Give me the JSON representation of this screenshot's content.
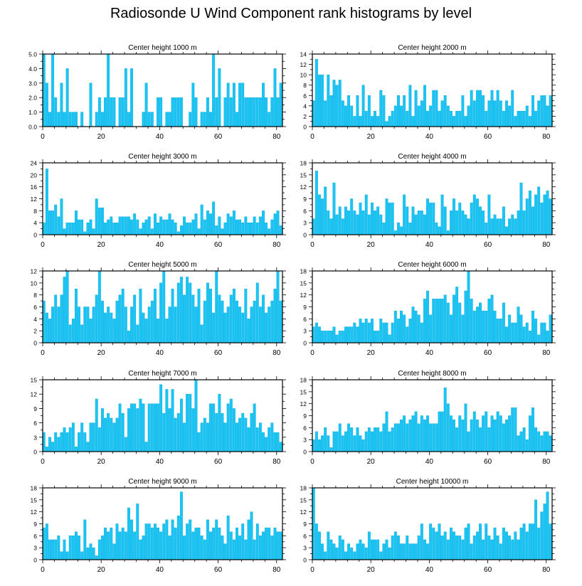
{
  "page_title": "Radiosonde U Wind Component rank histograms by level",
  "colors": {
    "bar": "#19c5f5",
    "bar_edge": "#0aa8d8",
    "axis": "#000000"
  },
  "chart_data": [
    {
      "type": "bar",
      "title": "Center height 1000 m",
      "xlabel": "",
      "ylabel": "",
      "xlim": [
        0,
        82
      ],
      "xticks": [
        0,
        20,
        40,
        60,
        80
      ],
      "ylim": [
        0,
        5
      ],
      "yticks": [
        0,
        1,
        2,
        3,
        4,
        5
      ],
      "yticklabels": [
        "0.0",
        "1.0",
        "2.0",
        "3.0",
        "4.0",
        "5.0"
      ],
      "x_start": 0,
      "values": [
        5,
        3,
        1,
        5,
        2,
        1,
        3,
        1,
        4,
        1,
        1,
        1,
        0,
        1,
        0,
        0,
        3,
        0,
        1,
        2,
        1,
        2,
        5,
        2,
        2,
        0,
        2,
        2,
        4,
        1,
        4,
        0,
        0,
        0,
        1,
        3,
        1,
        1,
        0,
        2,
        2,
        0,
        1,
        1,
        2,
        2,
        2,
        2,
        0,
        0,
        1,
        3,
        2,
        0,
        1,
        1,
        2,
        1,
        5,
        2,
        4,
        0,
        2,
        3,
        2,
        3,
        1,
        3,
        3,
        2,
        2,
        2,
        2,
        2,
        2,
        3,
        2,
        1,
        2,
        4,
        2,
        3
      ]
    },
    {
      "type": "bar",
      "title": "Center height 2000 m",
      "xlabel": "",
      "ylabel": "",
      "xlim": [
        0,
        82
      ],
      "xticks": [
        0,
        20,
        40,
        60,
        80
      ],
      "ylim": [
        0,
        14
      ],
      "yticks": [
        0,
        2,
        4,
        6,
        8,
        10,
        12,
        14
      ],
      "yticklabels": [
        "0",
        "2",
        "4",
        "6",
        "8",
        "10",
        "12",
        "14"
      ],
      "x_start": 0,
      "values": [
        5,
        13,
        10,
        10,
        5,
        10,
        6,
        9,
        8,
        9,
        5,
        4,
        6,
        4,
        2,
        6,
        2,
        8,
        3,
        6,
        2,
        3,
        2,
        7,
        6,
        1,
        2,
        3,
        4,
        6,
        4,
        6,
        3,
        8,
        2,
        7,
        4,
        5,
        8,
        3,
        4,
        7,
        7,
        3,
        5,
        6,
        4,
        3,
        2,
        3,
        3,
        6,
        2,
        4,
        7,
        5,
        7,
        7,
        6,
        3,
        5,
        7,
        5,
        7,
        5,
        3,
        5,
        4,
        7,
        2,
        3,
        3,
        3,
        4,
        2,
        6,
        3,
        5,
        6,
        6,
        4,
        6
      ]
    },
    {
      "type": "bar",
      "title": "Center height 3000 m",
      "xlabel": "",
      "ylabel": "",
      "xlim": [
        0,
        82
      ],
      "xticks": [
        0,
        20,
        40,
        60,
        80
      ],
      "ylim": [
        0,
        24
      ],
      "yticks": [
        0,
        4,
        8,
        12,
        16,
        20,
        24
      ],
      "yticklabels": [
        "0",
        "4",
        "8",
        "12",
        "16",
        "20",
        "24"
      ],
      "x_start": 0,
      "values": [
        4,
        22,
        8,
        8,
        10,
        6,
        12,
        2,
        4,
        4,
        4,
        8,
        5,
        5,
        1,
        4,
        5,
        2,
        12,
        9,
        9,
        4,
        5,
        6,
        4,
        4,
        6,
        6,
        6,
        6,
        5,
        7,
        5,
        2,
        4,
        5,
        6,
        2,
        7,
        4,
        6,
        5,
        5,
        7,
        5,
        4,
        1,
        3,
        6,
        4,
        4,
        5,
        7,
        2,
        10,
        5,
        8,
        7,
        11,
        3,
        6,
        2,
        4,
        7,
        6,
        8,
        5,
        5,
        4,
        6,
        4,
        4,
        6,
        4,
        6,
        8,
        4,
        2,
        5,
        7,
        8,
        3
      ]
    },
    {
      "type": "bar",
      "title": "Center height 4000 m",
      "xlabel": "",
      "ylabel": "",
      "xlim": [
        0,
        82
      ],
      "xticks": [
        0,
        20,
        40,
        60,
        80
      ],
      "ylim": [
        0,
        18
      ],
      "yticks": [
        0,
        3,
        6,
        9,
        12,
        15,
        18
      ],
      "yticklabels": [
        "0",
        "3",
        "6",
        "9",
        "12",
        "15",
        "18"
      ],
      "x_start": 0,
      "values": [
        4,
        16,
        10,
        9,
        12,
        6,
        4,
        13,
        5,
        7,
        4,
        7,
        6,
        9,
        6,
        5,
        8,
        6,
        10,
        5,
        8,
        6,
        7,
        5,
        3,
        9,
        8,
        8,
        1,
        3,
        2,
        10,
        7,
        3,
        7,
        5,
        6,
        6,
        5,
        9,
        8,
        8,
        3,
        2,
        10,
        7,
        1,
        6,
        9,
        6,
        8,
        6,
        5,
        4,
        8,
        10,
        9,
        7,
        6,
        3,
        10,
        4,
        5,
        4,
        4,
        7,
        2,
        4,
        5,
        4,
        6,
        13,
        6,
        9,
        11,
        7,
        10,
        12,
        8,
        10,
        11,
        9
      ]
    },
    {
      "type": "bar",
      "title": "Center height 5000 m",
      "xlabel": "",
      "ylabel": "",
      "xlim": [
        0,
        82
      ],
      "xticks": [
        0,
        20,
        40,
        60,
        80
      ],
      "ylim": [
        0,
        12
      ],
      "yticks": [
        0,
        2,
        4,
        6,
        8,
        10,
        12
      ],
      "yticklabels": [
        "0",
        "2",
        "4",
        "6",
        "8",
        "10",
        "12"
      ],
      "x_start": 0,
      "values": [
        7,
        5,
        4,
        6,
        8,
        6,
        8,
        11,
        12,
        3,
        4,
        9,
        6,
        3,
        6,
        6,
        4,
        6,
        8,
        12,
        7,
        5,
        6,
        5,
        4,
        7,
        8,
        9,
        6,
        2,
        6,
        8,
        3,
        9,
        5,
        4,
        6,
        7,
        9,
        4,
        10,
        12,
        4,
        6,
        9,
        6,
        10,
        11,
        8,
        11,
        10,
        8,
        6,
        9,
        3,
        7,
        10,
        9,
        5,
        12,
        8,
        7,
        5,
        6,
        8,
        9,
        7,
        6,
        5,
        9,
        4,
        6,
        7,
        10,
        6,
        8,
        5,
        6,
        7,
        9,
        12,
        7
      ]
    },
    {
      "type": "bar",
      "title": "Center height 6000 m",
      "xlabel": "",
      "ylabel": "",
      "xlim": [
        0,
        82
      ],
      "xticks": [
        0,
        20,
        40,
        60,
        80
      ],
      "ylim": [
        0,
        18
      ],
      "yticks": [
        0,
        3,
        6,
        9,
        12,
        15,
        18
      ],
      "yticklabels": [
        "0",
        "3",
        "6",
        "9",
        "12",
        "15",
        "18"
      ],
      "x_start": 0,
      "values": [
        4,
        5,
        4,
        3,
        3,
        3,
        3,
        4,
        2,
        3,
        3,
        4,
        4,
        4,
        5,
        4,
        6,
        5,
        6,
        5,
        6,
        3,
        3,
        6,
        5,
        5,
        2,
        5,
        8,
        6,
        8,
        7,
        4,
        6,
        9,
        8,
        7,
        5,
        11,
        13,
        7,
        11,
        11,
        11,
        11,
        12,
        10,
        7,
        12,
        14,
        10,
        7,
        13,
        18,
        11,
        8,
        9,
        10,
        8,
        8,
        11,
        12,
        8,
        6,
        6,
        10,
        4,
        7,
        5,
        5,
        9,
        7,
        4,
        5,
        3,
        8,
        6,
        2,
        5,
        5,
        3,
        7
      ]
    },
    {
      "type": "bar",
      "title": "Center height 7000 m",
      "xlabel": "",
      "ylabel": "",
      "xlim": [
        0,
        82
      ],
      "xticks": [
        0,
        20,
        40,
        60,
        80
      ],
      "ylim": [
        0,
        15
      ],
      "yticks": [
        0,
        3,
        6,
        9,
        12,
        15
      ],
      "yticklabels": [
        "0",
        "3",
        "6",
        "9",
        "12",
        "15"
      ],
      "x_start": 0,
      "values": [
        4,
        1,
        3,
        2,
        4,
        3,
        4,
        5,
        4,
        5,
        6,
        1,
        4,
        6,
        4,
        2,
        6,
        6,
        11,
        5,
        9,
        7,
        8,
        7,
        6,
        7,
        10,
        8,
        3,
        9,
        10,
        10,
        9,
        11,
        10,
        2,
        10,
        10,
        10,
        10,
        14,
        8,
        13,
        9,
        13,
        7,
        8,
        11,
        6,
        12,
        12,
        9,
        15,
        4,
        6,
        7,
        6,
        10,
        10,
        8,
        12,
        8,
        6,
        10,
        11,
        9,
        6,
        7,
        8,
        7,
        5,
        8,
        10,
        5,
        6,
        4,
        3,
        5,
        6,
        4,
        4,
        2
      ]
    },
    {
      "type": "bar",
      "title": "Center height 8000 m",
      "xlabel": "",
      "ylabel": "",
      "xlim": [
        0,
        82
      ],
      "xticks": [
        0,
        20,
        40,
        60,
        80
      ],
      "ylim": [
        0,
        18
      ],
      "yticks": [
        0,
        3,
        6,
        9,
        12,
        15,
        18
      ],
      "yticklabels": [
        "0",
        "3",
        "6",
        "9",
        "12",
        "15",
        "18"
      ],
      "x_start": 0,
      "values": [
        3,
        5,
        3,
        4,
        6,
        4,
        1,
        5,
        5,
        7,
        4,
        5,
        7,
        6,
        4,
        6,
        4,
        3,
        5,
        6,
        5,
        6,
        6,
        5,
        7,
        10,
        5,
        6,
        7,
        7,
        8,
        9,
        7,
        8,
        9,
        10,
        7,
        9,
        8,
        9,
        7,
        7,
        7,
        10,
        10,
        16,
        12,
        9,
        8,
        6,
        9,
        8,
        12,
        5,
        8,
        10,
        8,
        6,
        9,
        10,
        6,
        9,
        8,
        10,
        9,
        7,
        8,
        9,
        11,
        11,
        4,
        5,
        6,
        3,
        9,
        11,
        6,
        5,
        4,
        5,
        5,
        4
      ]
    },
    {
      "type": "bar",
      "title": "Center height 9000 m",
      "xlabel": "",
      "ylabel": "",
      "xlim": [
        0,
        82
      ],
      "xticks": [
        0,
        20,
        40,
        60,
        80
      ],
      "ylim": [
        0,
        18
      ],
      "yticks": [
        0,
        3,
        6,
        9,
        12,
        15,
        18
      ],
      "yticklabels": [
        "0",
        "3",
        "6",
        "9",
        "12",
        "15",
        "18"
      ],
      "x_start": 0,
      "values": [
        8,
        9,
        5,
        5,
        5,
        6,
        2,
        5,
        2,
        6,
        6,
        7,
        6,
        2,
        10,
        3,
        4,
        3,
        1,
        5,
        6,
        8,
        7,
        8,
        4,
        9,
        7,
        8,
        7,
        13,
        10,
        7,
        14,
        5,
        6,
        9,
        9,
        8,
        9,
        8,
        7,
        9,
        10,
        6,
        10,
        8,
        11,
        17,
        6,
        9,
        10,
        7,
        8,
        8,
        6,
        5,
        10,
        7,
        8,
        10,
        8,
        6,
        4,
        11,
        7,
        5,
        8,
        6,
        9,
        5,
        10,
        12,
        5,
        9,
        6,
        7,
        8,
        8,
        6,
        8,
        7,
        7
      ]
    },
    {
      "type": "bar",
      "title": "Center height 10000 m",
      "xlabel": "",
      "ylabel": "",
      "xlim": [
        0,
        82
      ],
      "xticks": [
        0,
        20,
        40,
        60,
        80
      ],
      "ylim": [
        0,
        18
      ],
      "yticks": [
        0,
        3,
        6,
        9,
        12,
        15,
        18
      ],
      "yticklabels": [
        "0",
        "3",
        "6",
        "9",
        "12",
        "15",
        "18"
      ],
      "x_start": 0,
      "values": [
        18,
        9,
        7,
        4,
        2,
        7,
        5,
        4,
        3,
        6,
        5,
        2,
        4,
        3,
        2,
        4,
        5,
        4,
        3,
        7,
        5,
        5,
        5,
        2,
        4,
        5,
        3,
        6,
        7,
        6,
        4,
        4,
        6,
        4,
        4,
        4,
        6,
        9,
        5,
        4,
        9,
        8,
        7,
        9,
        6,
        7,
        5,
        8,
        7,
        6,
        6,
        5,
        8,
        9,
        4,
        6,
        7,
        9,
        5,
        9,
        6,
        5,
        8,
        6,
        4,
        8,
        7,
        6,
        5,
        7,
        5,
        8,
        9,
        7,
        9,
        9,
        15,
        8,
        12,
        14,
        17,
        9
      ]
    }
  ]
}
